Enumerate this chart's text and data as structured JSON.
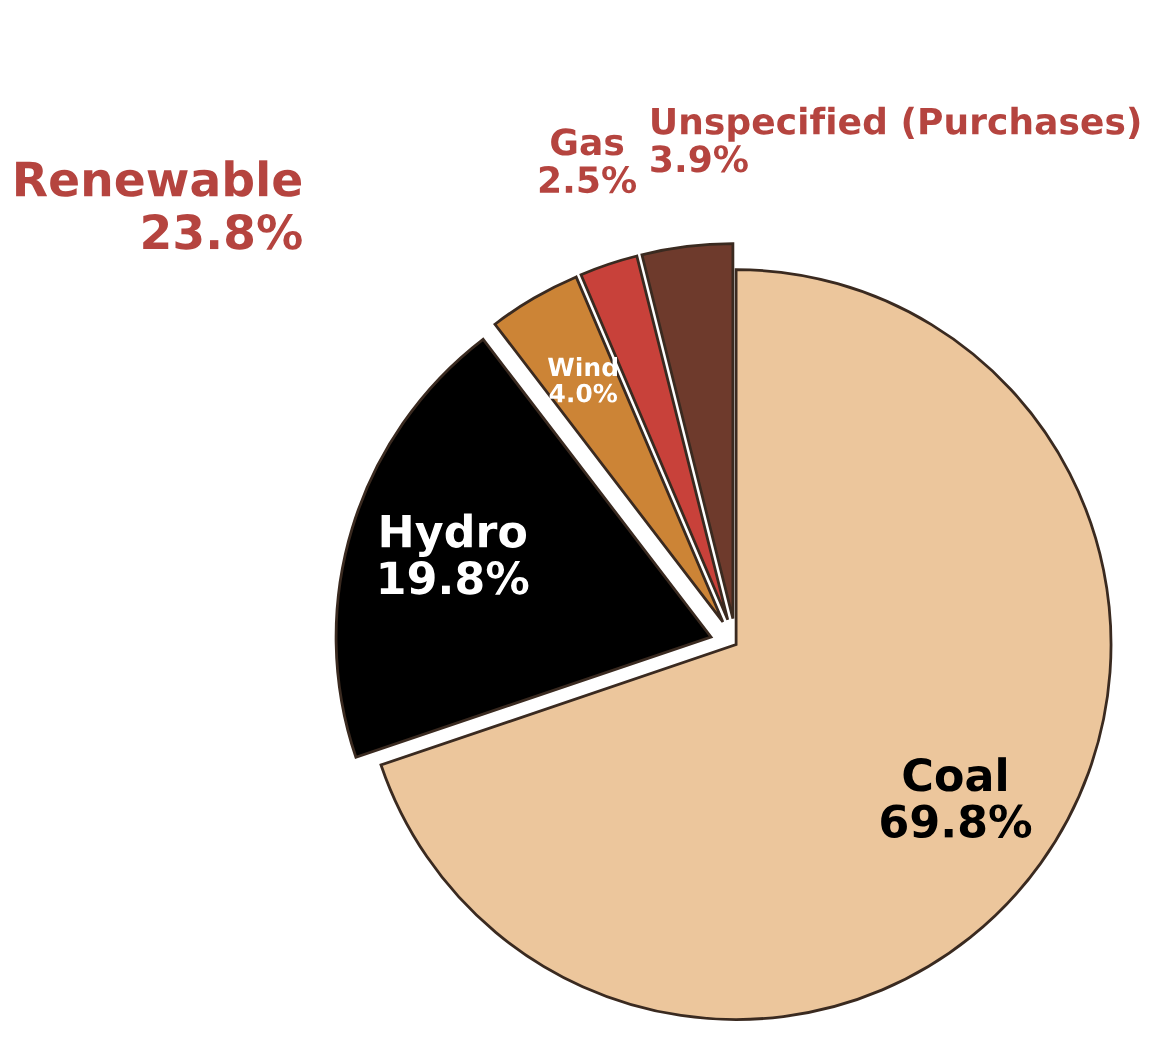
{
  "chart_data": {
    "type": "pie",
    "categories": [
      "Coal",
      "Hydro",
      "Wind",
      "Gas",
      "Unspecified (Purchases)"
    ],
    "values": [
      69.8,
      19.8,
      4.0,
      2.5,
      3.9
    ],
    "value_labels": [
      "69.8%",
      "19.8%",
      "4.0%",
      "2.5%",
      "3.9%"
    ],
    "colors": [
      "#ecc69c",
      "#000000",
      "#cc8436",
      "#c8413a",
      "#6e3a2c"
    ],
    "annotations": [
      "Renewable\n23.8%"
    ]
  }
}
